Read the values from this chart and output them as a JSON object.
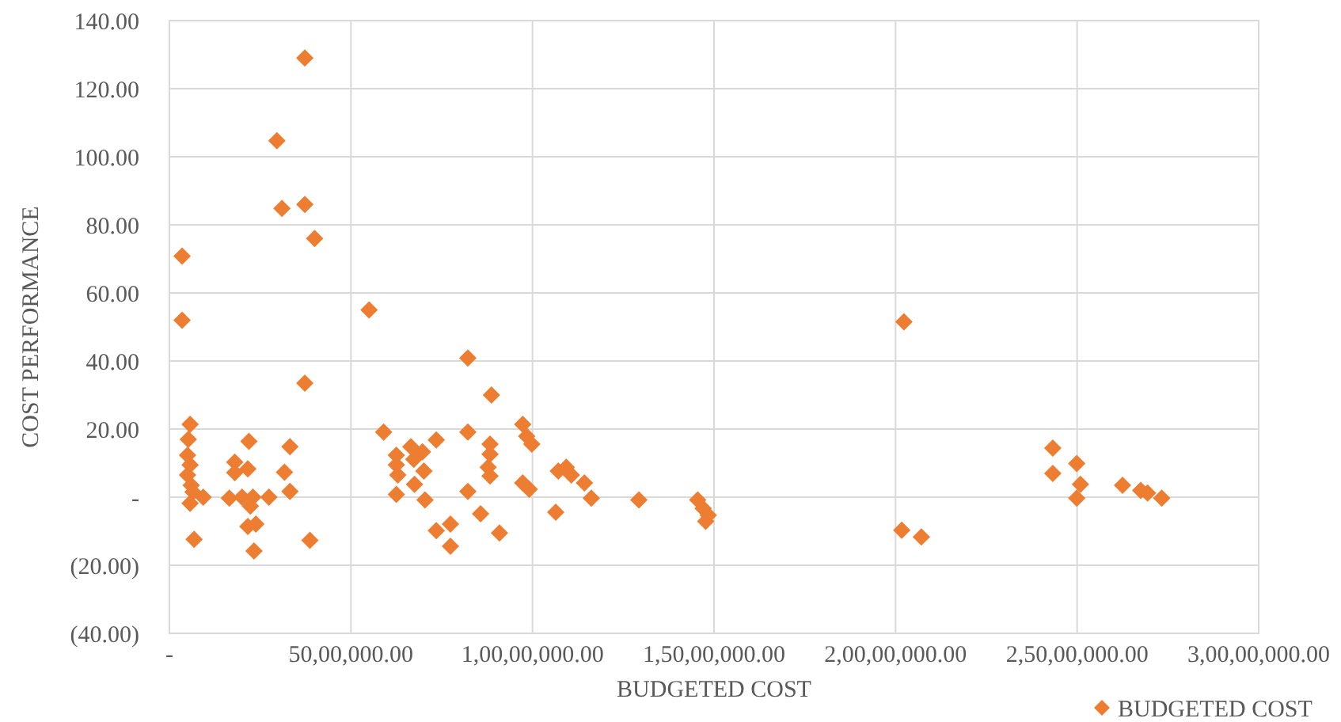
{
  "chart_data": {
    "type": "scatter",
    "xlabel": "BUDGETED COST",
    "ylabel": "COST PERFORMANCE",
    "xlim": [
      0,
      30000000
    ],
    "ylim": [
      -40,
      140
    ],
    "xticks": [
      {
        "value": 0,
        "label": "-"
      },
      {
        "value": 5000000,
        "label": "50,00,000.00"
      },
      {
        "value": 10000000,
        "label": "1,00,00,000.00"
      },
      {
        "value": 15000000,
        "label": "1,50,00,000.00"
      },
      {
        "value": 20000000,
        "label": "2,00,00,000.00"
      },
      {
        "value": 25000000,
        "label": "2,50,00,000.00"
      },
      {
        "value": 30000000,
        "label": "3,00,00,000.00"
      }
    ],
    "yticks": [
      {
        "value": -40,
        "label": "(40.00)"
      },
      {
        "value": -20,
        "label": "(20.00)"
      },
      {
        "value": 0,
        "label": "-"
      },
      {
        "value": 20,
        "label": "20.00"
      },
      {
        "value": 40,
        "label": "40.00"
      },
      {
        "value": 60,
        "label": "60.00"
      },
      {
        "value": 80,
        "label": "80.00"
      },
      {
        "value": 100,
        "label": "100.00"
      },
      {
        "value": 120,
        "label": "120.00"
      },
      {
        "value": 140,
        "label": "140.00"
      }
    ],
    "grid": true,
    "legend": "bottom right",
    "marker": "diamond",
    "series": [
      {
        "name": "BUDGETED COST",
        "color": "#ed7d31",
        "x": [
          3730000,
          2960000,
          3100000,
          3730000,
          4000000,
          350000,
          350000,
          5500000,
          3730000,
          570000,
          520000,
          500000,
          570000,
          500000,
          600000,
          650000,
          930000,
          570000,
          680000,
          2190000,
          1800000,
          2160000,
          1800000,
          1650000,
          2000000,
          2300000,
          2230000,
          2740000,
          2160000,
          2380000,
          2330000,
          3320000,
          3170000,
          3320000,
          3870000,
          8220000,
          8870000,
          5900000,
          8220000,
          9730000,
          9840000,
          9980000,
          7350000,
          6650000,
          6970000,
          6250000,
          6730000,
          6250000,
          7010000,
          6290000,
          6750000,
          6250000,
          7040000,
          8830000,
          8830000,
          8780000,
          8830000,
          8220000,
          9730000,
          9910000,
          10710000,
          10930000,
          11070000,
          11430000,
          11620000,
          10640000,
          8570000,
          7350000,
          7740000,
          9090000,
          7740000,
          12930000,
          14550000,
          14700000,
          14840000,
          14770000,
          20230000,
          20170000,
          20710000,
          24330000,
          24330000,
          24990000,
          25090000,
          24990000,
          26250000,
          26750000,
          26940000,
          27330000
        ],
        "values": [
          129,
          104.7,
          84.8,
          86,
          76,
          70.8,
          52,
          55,
          33.5,
          21.4,
          17,
          12.3,
          9.5,
          6.5,
          3.5,
          1.5,
          0,
          -1.8,
          -12.4,
          16.4,
          10.3,
          8.3,
          7.2,
          -0.3,
          0,
          0,
          -2.6,
          0,
          -8.6,
          -7.9,
          -15.8,
          14.8,
          7.3,
          1.7,
          -12.7,
          40.9,
          30,
          19.1,
          19.1,
          21.4,
          17.9,
          15.6,
          16.8,
          14.8,
          13.3,
          12.3,
          11.1,
          9.5,
          7.7,
          6.5,
          3.8,
          0.8,
          -0.8,
          15.6,
          12.6,
          8.8,
          6.2,
          1.7,
          4.2,
          2.3,
          7.7,
          8.8,
          6.5,
          4.2,
          -0.3,
          -4.4,
          -4.9,
          -9.8,
          -7.9,
          -10.5,
          -14.4,
          -0.8,
          -0.8,
          -3.3,
          -5.3,
          -7.1,
          51.5,
          -9.7,
          -11.7,
          14.4,
          7,
          9.9,
          3.8,
          -0.3,
          3.5,
          2,
          1.2,
          -0.3
        ]
      }
    ]
  }
}
